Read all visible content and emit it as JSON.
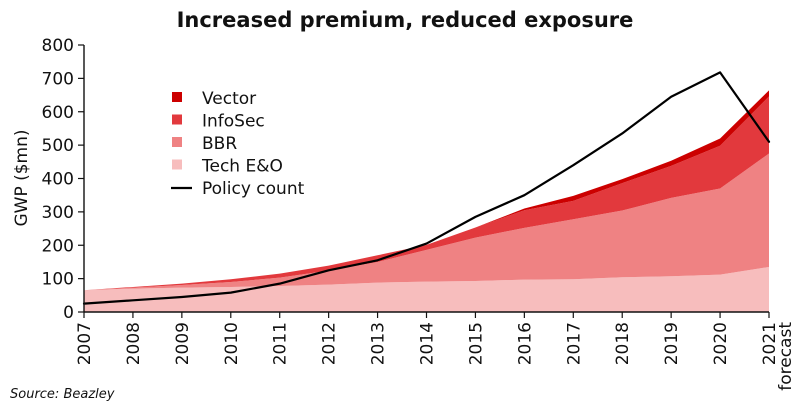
{
  "chart_data": {
    "type": "area",
    "title": "Increased premium, reduced exposure",
    "xlabel": "",
    "ylabel": "GWP ($mn)",
    "ylim": [
      0,
      800
    ],
    "yticks": [
      0,
      100,
      200,
      300,
      400,
      500,
      600,
      700,
      800
    ],
    "categories": [
      "2007",
      "2008",
      "2009",
      "2010",
      "2011",
      "2012",
      "2013",
      "2014",
      "2015",
      "2016",
      "2017",
      "2018",
      "2019",
      "2020",
      "2021"
    ],
    "x_tick_labels": [
      "2007",
      "2008",
      "2009",
      "2010",
      "2011",
      "2012",
      "2013",
      "2014",
      "2015",
      "2016",
      "2017",
      "2018",
      "2019",
      "2020",
      "2021",
      "forecast"
    ],
    "stacked": true,
    "series": [
      {
        "name": "Tech E&O",
        "color": "#F7BDBD",
        "values": [
          65,
          70,
          73,
          75,
          78,
          82,
          88,
          91,
          93,
          97,
          98,
          104,
          107,
          112,
          135
        ]
      },
      {
        "name": "BBR",
        "color": "#EF8283",
        "values": [
          0,
          3,
          8,
          15,
          25,
          42,
          62,
          95,
          130,
          155,
          180,
          200,
          235,
          258,
          340
        ]
      },
      {
        "name": "InfoSec",
        "color": "#E2393D",
        "values": [
          0,
          2,
          4,
          8,
          12,
          15,
          20,
          15,
          30,
          53,
          55,
          82,
          96,
          128,
          171
        ]
      },
      {
        "name": "Vector",
        "color": "#CC0000",
        "values": [
          0,
          0,
          0,
          0,
          0,
          0,
          0,
          0,
          0,
          5,
          15,
          12,
          15,
          22,
          18
        ]
      }
    ],
    "line_series": {
      "name": "Policy count",
      "color": "#000000",
      "values": [
        25,
        35,
        45,
        58,
        85,
        125,
        155,
        205,
        285,
        350,
        440,
        535,
        645,
        718,
        510
      ]
    },
    "legend": {
      "placement": "top-left",
      "entries": [
        "Vector",
        "InfoSec",
        "BBR",
        "Tech E&O",
        "Policy count"
      ]
    },
    "source": "Source: Beazley"
  }
}
